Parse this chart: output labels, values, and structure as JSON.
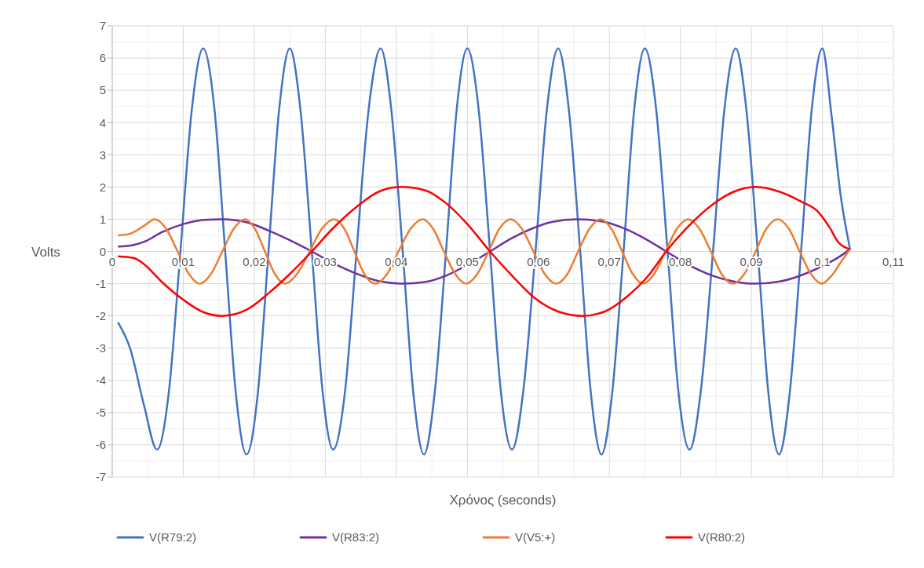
{
  "chart_data": {
    "type": "line",
    "xlabel": "Χρόνος (seconds)",
    "ylabel": "Volts",
    "xlim": [
      0,
      0.11
    ],
    "ylim": [
      -7,
      7
    ],
    "xticks": [
      0,
      {
        "value": 0.01,
        "label": "0,01"
      },
      {
        "value": 0.02,
        "label": "0,02"
      },
      {
        "value": 0.03,
        "label": "0,03"
      },
      {
        "value": 0.04,
        "label": "0,04"
      },
      {
        "value": 0.05,
        "label": "0,05"
      },
      {
        "value": 0.06,
        "label": "0,06"
      },
      {
        "value": 0.07,
        "label": "0,07"
      },
      {
        "value": 0.08,
        "label": "0,08"
      },
      {
        "value": 0.09,
        "label": "0,09"
      },
      {
        "value": 0.1,
        "label": "0,1"
      },
      {
        "value": 0.11,
        "label": "0,11"
      }
    ],
    "yticks": [
      -7,
      -6,
      -5,
      -4,
      -3,
      -2,
      -1,
      0,
      1,
      2,
      3,
      4,
      5,
      6,
      7
    ],
    "grid": true,
    "legend": "bottom",
    "series": [
      {
        "name": "V(R79:2)",
        "color": "#4472c4",
        "x": [
          0.0008,
          0.0025,
          0.0045,
          0.0063,
          0.008,
          0.0096,
          0.0112,
          0.0128,
          0.0144,
          0.0159,
          0.0174,
          0.0189,
          0.0205,
          0.022,
          0.0235,
          0.025,
          0.0265,
          0.0281,
          0.0296,
          0.0311,
          0.0328,
          0.0344,
          0.0361,
          0.0378,
          0.0393,
          0.0409,
          0.0424,
          0.0439,
          0.0454,
          0.047,
          0.0485,
          0.05,
          0.0516,
          0.0532,
          0.0547,
          0.0563,
          0.0579,
          0.0596,
          0.0612,
          0.0628,
          0.0643,
          0.0659,
          0.0674,
          0.0689,
          0.0704,
          0.072,
          0.0735,
          0.075,
          0.0766,
          0.0782,
          0.0797,
          0.0813,
          0.0829,
          0.0846,
          0.0862,
          0.0878,
          0.0893,
          0.0909,
          0.0924,
          0.0939,
          0.0954,
          0.097,
          0.0985,
          0.1,
          0.1013,
          0.1026,
          0.1039
        ],
        "values": [
          -2.2,
          -3.0,
          -4.8,
          -6.15,
          -4.3,
          0,
          4.4,
          6.3,
          4.4,
          0,
          -4.4,
          -6.3,
          -4.4,
          0,
          4.4,
          6.3,
          4.4,
          0,
          -4.3,
          -6.15,
          -4.3,
          0,
          4.4,
          6.3,
          4.4,
          0,
          -4.4,
          -6.3,
          -4.4,
          0,
          4.4,
          6.3,
          4.4,
          0,
          -4.3,
          -6.15,
          -4.3,
          0,
          4.4,
          6.3,
          4.4,
          0,
          -4.4,
          -6.3,
          -4.4,
          0,
          4.4,
          6.3,
          4.4,
          0,
          -4.3,
          -6.15,
          -4.3,
          0,
          4.4,
          6.3,
          4.4,
          0,
          -4.4,
          -6.3,
          -4.4,
          0,
          4.4,
          6.3,
          4.2,
          1.7,
          0.07
        ]
      },
      {
        "name": "V(R83:2)",
        "color": "#7030a0",
        "x": [
          0.0008,
          0.003,
          0.0045,
          0.007,
          0.01,
          0.013,
          0.0155,
          0.019,
          0.022,
          0.025,
          0.0281,
          0.031,
          0.0345,
          0.0375,
          0.041,
          0.044,
          0.047,
          0.05,
          0.0532,
          0.056,
          0.059,
          0.062,
          0.0655,
          0.069,
          0.072,
          0.075,
          0.078,
          0.081,
          0.0845,
          0.0875,
          0.0905,
          0.094,
          0.0975,
          0.1005,
          0.1025,
          0.1039
        ],
        "values": [
          0.15,
          0.2,
          0.3,
          0.6,
          0.85,
          0.98,
          1,
          0.9,
          0.65,
          0.35,
          0,
          -0.35,
          -0.7,
          -0.92,
          -1,
          -0.95,
          -0.75,
          -0.42,
          0,
          0.38,
          0.7,
          0.92,
          1,
          0.93,
          0.72,
          0.4,
          0,
          -0.4,
          -0.75,
          -0.93,
          -1,
          -0.93,
          -0.7,
          -0.4,
          -0.15,
          0.07
        ]
      },
      {
        "name": "V(V5:+)",
        "color": "#ed7d31",
        "x": [
          0.0008,
          0.0025,
          0.0045,
          0.006,
          0.0076,
          0.0092,
          0.0108,
          0.0123,
          0.0139,
          0.0155,
          0.0171,
          0.0187,
          0.0201,
          0.0215,
          0.0229,
          0.0243,
          0.026,
          0.0278,
          0.0295,
          0.0312,
          0.0327,
          0.0341,
          0.0355,
          0.037,
          0.0387,
          0.0403,
          0.042,
          0.0437,
          0.0452,
          0.0467,
          0.0483,
          0.0498,
          0.0514,
          0.053,
          0.0545,
          0.0561,
          0.0577,
          0.0593,
          0.0609,
          0.0625,
          0.0641,
          0.0656,
          0.0672,
          0.0687,
          0.0703,
          0.0718,
          0.0733,
          0.0747,
          0.0763,
          0.0779,
          0.0795,
          0.0811,
          0.0827,
          0.0843,
          0.0858,
          0.0874,
          0.089,
          0.0906,
          0.0921,
          0.0937,
          0.0953,
          0.0968,
          0.0984,
          0.0999,
          0.1013,
          0.1027,
          0.1039
        ],
        "values": [
          0.5,
          0.55,
          0.8,
          1,
          0.7,
          0,
          -0.7,
          -1,
          -0.7,
          0,
          0.7,
          1,
          0.7,
          0,
          -0.7,
          -1,
          -0.7,
          0,
          0.7,
          1,
          0.7,
          0,
          -0.7,
          -1,
          -0.7,
          0,
          0.7,
          1,
          0.7,
          0,
          -0.7,
          -1,
          -0.7,
          0,
          0.7,
          1,
          0.7,
          0,
          -0.7,
          -1,
          -0.7,
          0,
          0.7,
          1,
          0.7,
          0,
          -0.7,
          -1,
          -0.7,
          0,
          0.7,
          1,
          0.7,
          0,
          -0.7,
          -1,
          -0.7,
          0,
          0.7,
          1,
          0.7,
          0,
          -0.7,
          -1,
          -0.75,
          -0.3,
          0.07
        ]
      },
      {
        "name": "V(R80:2)",
        "color": "#ff0000",
        "x": [
          0.0008,
          0.003,
          0.0045,
          0.007,
          0.01,
          0.013,
          0.0155,
          0.019,
          0.022,
          0.025,
          0.0281,
          0.031,
          0.0345,
          0.0375,
          0.0406,
          0.044,
          0.047,
          0.05,
          0.0532,
          0.0565,
          0.0595,
          0.063,
          0.0663,
          0.0695,
          0.0725,
          0.0755,
          0.078,
          0.081,
          0.0845,
          0.0875,
          0.0906,
          0.094,
          0.097,
          0.0993,
          0.101,
          0.1022,
          0.1039
        ],
        "values": [
          -0.15,
          -0.2,
          -0.4,
          -0.95,
          -1.5,
          -1.9,
          -2,
          -1.8,
          -1.3,
          -0.7,
          0,
          0.7,
          1.4,
          1.85,
          2,
          1.9,
          1.5,
          0.85,
          0,
          -0.8,
          -1.45,
          -1.88,
          -2,
          -1.85,
          -1.4,
          -0.75,
          0,
          0.75,
          1.45,
          1.85,
          2,
          1.85,
          1.55,
          1.25,
          0.75,
          0.3,
          0.07
        ]
      }
    ]
  }
}
